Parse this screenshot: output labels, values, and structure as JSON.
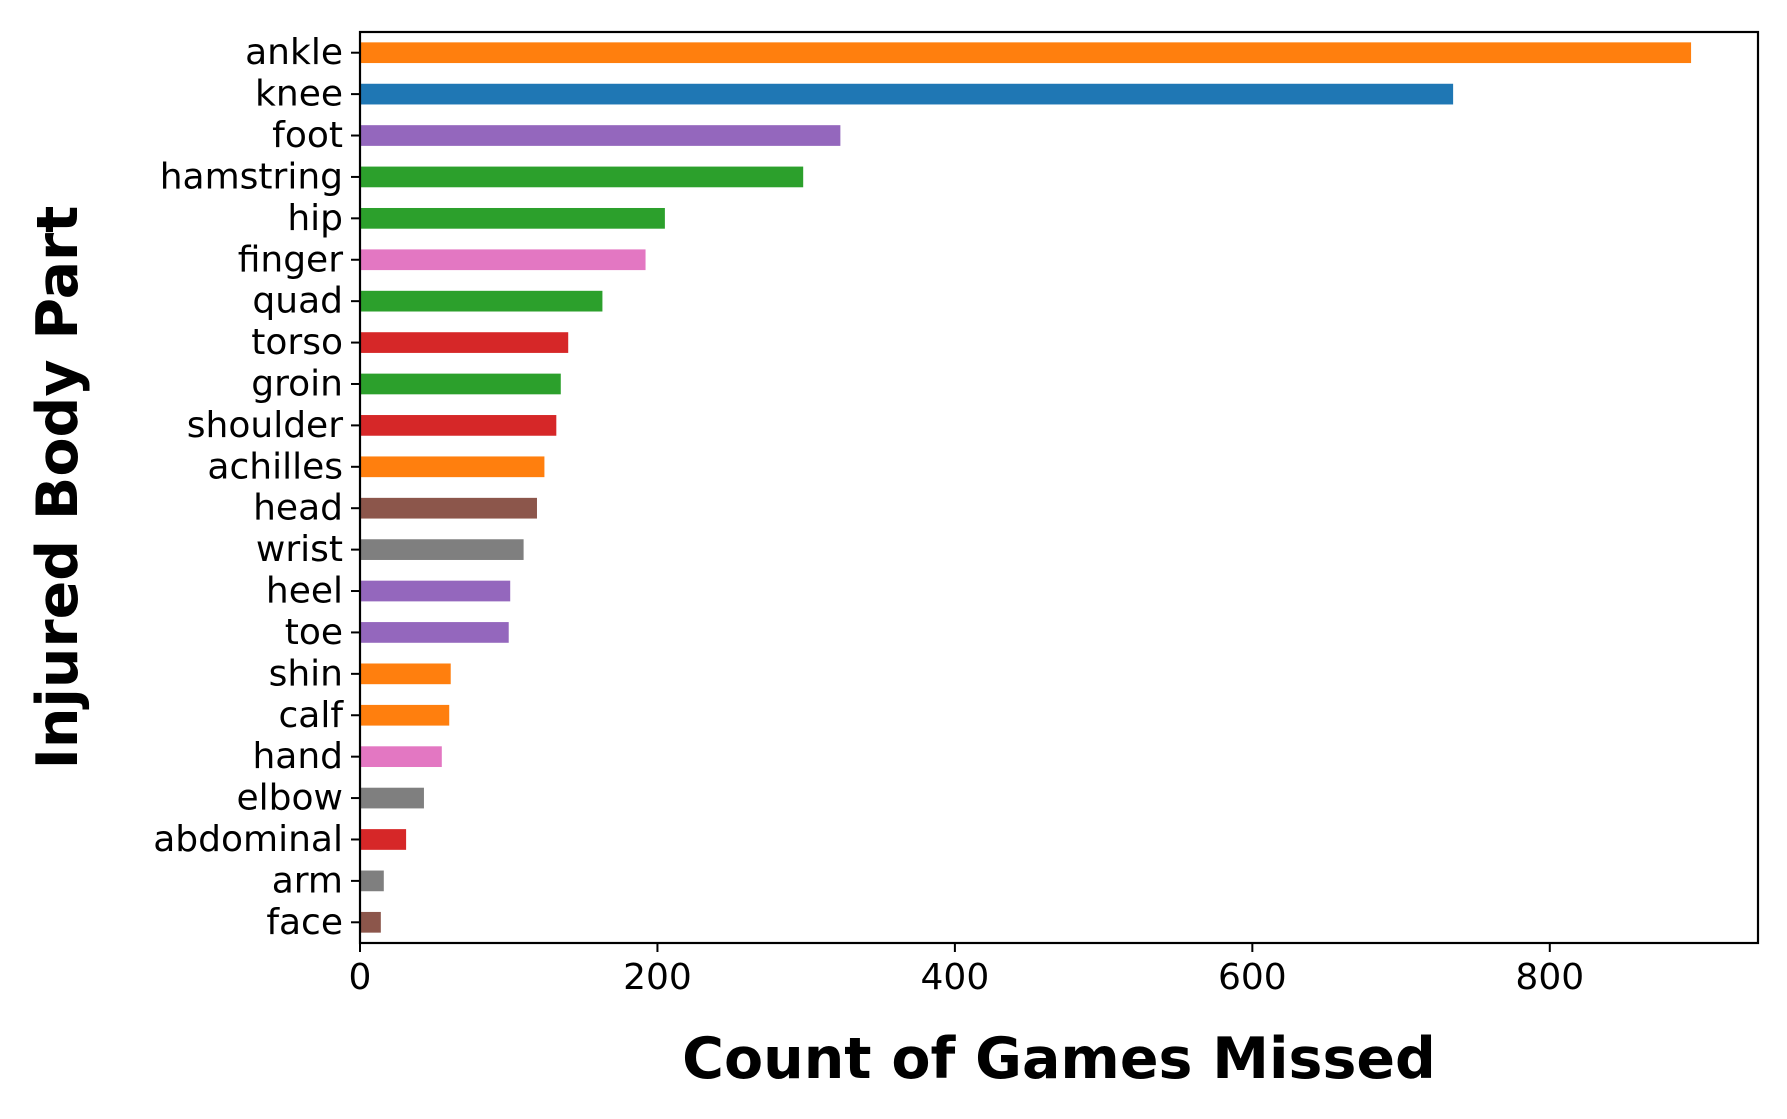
{
  "chart_data": {
    "type": "bar",
    "orientation": "horizontal",
    "xlabel": "Count of Games Missed",
    "ylabel": "Injured Body Part",
    "xlim": [
      0,
      940
    ],
    "xticks": [
      0,
      200,
      400,
      600,
      800
    ],
    "grid": false,
    "legend": "none",
    "categories": [
      "ankle",
      "knee",
      "foot",
      "hamstring",
      "hip",
      "finger",
      "quad",
      "torso",
      "groin",
      "shoulder",
      "achilles",
      "head",
      "wrist",
      "heel",
      "toe",
      "shin",
      "calf",
      "hand",
      "elbow",
      "abdominal",
      "arm",
      "face"
    ],
    "values": [
      895,
      735,
      323,
      298,
      205,
      192,
      163,
      140,
      135,
      132,
      124,
      119,
      110,
      101,
      100,
      61,
      60,
      55,
      43,
      31,
      16,
      14
    ],
    "colors": [
      "#ff7f0e",
      "#1f77b4",
      "#9467bd",
      "#2ca02c",
      "#2ca02c",
      "#e377c2",
      "#2ca02c",
      "#d62728",
      "#2ca02c",
      "#d62728",
      "#ff7f0e",
      "#8c564b",
      "#7f7f7f",
      "#9467bd",
      "#9467bd",
      "#ff7f0e",
      "#ff7f0e",
      "#e377c2",
      "#7f7f7f",
      "#d62728",
      "#7f7f7f",
      "#8c564b"
    ]
  }
}
